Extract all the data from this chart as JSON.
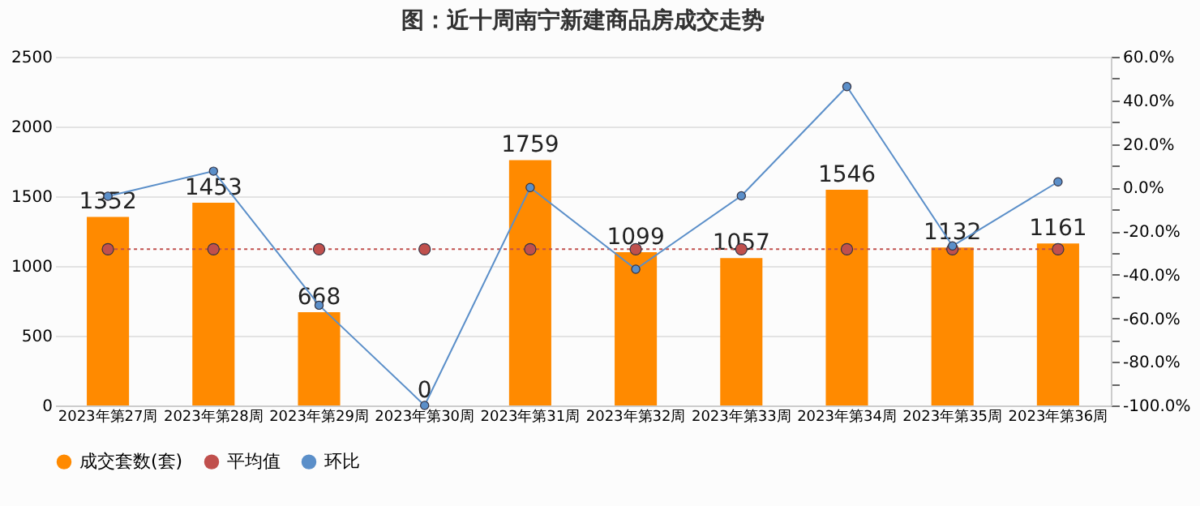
{
  "chart_data": {
    "type": "bar",
    "title": "图：近十周南宁新建商品房成交走势",
    "categories": [
      "2023年第27周",
      "2023年第28周",
      "2023年第29周",
      "2023年第30周",
      "2023年第31周",
      "2023年第32周",
      "2023年第33周",
      "2023年第34周",
      "2023年第35周",
      "2023年第36周"
    ],
    "series": [
      {
        "name": "成交套数(套)",
        "color": "#ff8a00",
        "values": [
          1352,
          1453,
          668,
          0,
          1759,
          1099,
          1057,
          1546,
          1132,
          1161
        ],
        "data_labels": true
      },
      {
        "name": "平均值",
        "type": "line",
        "color": "#c0504d",
        "line_style": "dotted",
        "marker": "circle",
        "values": [
          1120,
          1120,
          1120,
          1120,
          1120,
          1120,
          1120,
          1120,
          1120,
          1120
        ]
      },
      {
        "name": "环比",
        "type": "line",
        "color": "#5b8fc9",
        "line_style": "solid",
        "marker": "circle",
        "axis": "y2",
        "values": [
          -4,
          7.5,
          -54,
          -100,
          0,
          -37.5,
          -3.8,
          46.3,
          -26.8,
          2.6
        ]
      }
    ],
    "ylim": [
      0,
      2500
    ],
    "yticks": [
      0,
      500,
      1000,
      1500,
      2000,
      2500
    ],
    "y2lim": [
      -100,
      60
    ],
    "y2ticks": [
      {
        "value": -100,
        "label": "-100.0%"
      },
      {
        "value": -90,
        "label": null
      },
      {
        "value": -80,
        "label": "-80.0%"
      },
      {
        "value": -70,
        "label": null
      },
      {
        "value": -60,
        "label": "-60.0%"
      },
      {
        "value": -50,
        "label": null
      },
      {
        "value": -40,
        "label": "-40.0%"
      },
      {
        "value": -30,
        "label": null
      },
      {
        "value": -20,
        "label": "-20.0%"
      },
      {
        "value": -10,
        "label": null
      },
      {
        "value": 0,
        "label": "0.0%"
      },
      {
        "value": 10,
        "label": null
      },
      {
        "value": 20,
        "label": "20.0%"
      },
      {
        "value": 30,
        "label": null
      },
      {
        "value": 40,
        "label": "40.0%"
      },
      {
        "value": 50,
        "label": null
      },
      {
        "value": 60,
        "label": "60.0%"
      }
    ],
    "grid": "y",
    "legend": "bottom"
  }
}
